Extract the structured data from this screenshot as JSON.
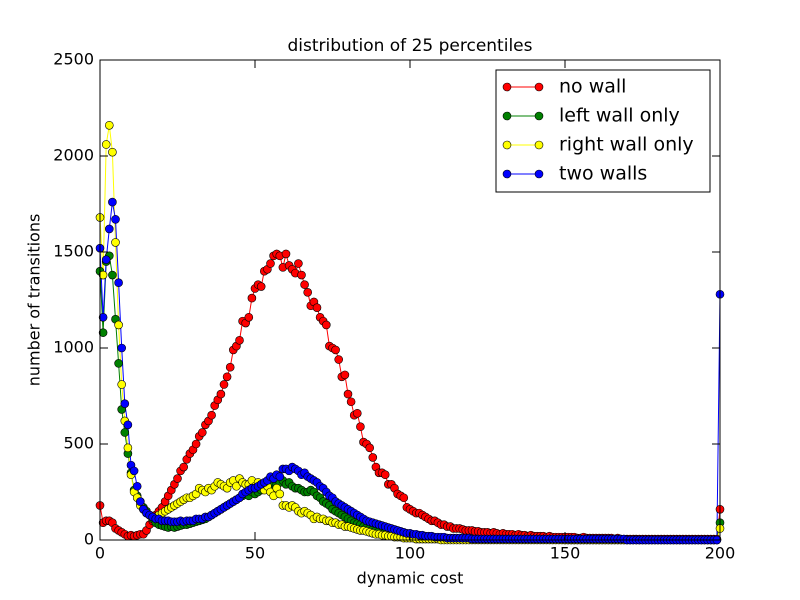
{
  "chart_data": {
    "type": "line",
    "title": "distribution of 25 percentiles",
    "x_label": "dynamic cost",
    "y_label": "number of transitions",
    "xlim": [
      0,
      200
    ],
    "xticks": [
      0,
      50,
      100,
      150,
      200
    ],
    "ylim": [
      0,
      2500
    ],
    "yticks": [
      0,
      500,
      1000,
      1500,
      2000,
      2500
    ],
    "grid": false,
    "legend_position": "upper right",
    "marker": "circle",
    "x": [
      0,
      1,
      2,
      3,
      4,
      5,
      6,
      7,
      8,
      9,
      10,
      11,
      12,
      13,
      14,
      15,
      16,
      17,
      18,
      19,
      20,
      21,
      22,
      23,
      24,
      25,
      26,
      27,
      28,
      29,
      30,
      31,
      32,
      33,
      34,
      35,
      36,
      37,
      38,
      39,
      40,
      41,
      42,
      43,
      44,
      45,
      46,
      47,
      48,
      49,
      50,
      51,
      52,
      53,
      54,
      55,
      56,
      57,
      58,
      59,
      60,
      61,
      62,
      63,
      64,
      65,
      66,
      67,
      68,
      69,
      70,
      71,
      72,
      73,
      74,
      75,
      76,
      77,
      78,
      79,
      80,
      81,
      82,
      83,
      84,
      85,
      86,
      87,
      88,
      89,
      90,
      91,
      92,
      93,
      94,
      95,
      96,
      97,
      98,
      99,
      100,
      101,
      102,
      103,
      104,
      105,
      106,
      107,
      108,
      109,
      110,
      111,
      112,
      113,
      114,
      115,
      116,
      117,
      118,
      119,
      120,
      121,
      122,
      123,
      124,
      125,
      126,
      127,
      128,
      129,
      130,
      131,
      132,
      133,
      134,
      135,
      136,
      137,
      138,
      139,
      140,
      141,
      142,
      143,
      144,
      145,
      146,
      147,
      148,
      149,
      150,
      151,
      152,
      153,
      154,
      155,
      156,
      157,
      158,
      159,
      160,
      161,
      162,
      163,
      164,
      165,
      166,
      167,
      168,
      169,
      170,
      171,
      172,
      173,
      174,
      175,
      176,
      177,
      178,
      179,
      180,
      181,
      182,
      183,
      184,
      185,
      186,
      187,
      188,
      189,
      190,
      191,
      192,
      193,
      194,
      195,
      196,
      197,
      198,
      199,
      200
    ],
    "series": [
      {
        "name": "no wall",
        "color": "#ff0000",
        "values": [
          180,
          90,
          100,
          100,
          90,
          60,
          50,
          40,
          30,
          20,
          25,
          20,
          25,
          30,
          30,
          50,
          80,
          100,
          130,
          150,
          170,
          200,
          230,
          260,
          290,
          320,
          360,
          380,
          420,
          450,
          470,
          500,
          540,
          560,
          600,
          620,
          650,
          700,
          730,
          760,
          810,
          850,
          900,
          990,
          1010,
          1040,
          1140,
          1130,
          1160,
          1260,
          1310,
          1330,
          1320,
          1400,
          1410,
          1440,
          1480,
          1490,
          1480,
          1420,
          1490,
          1430,
          1410,
          1390,
          1440,
          1380,
          1330,
          1290,
          1220,
          1240,
          1210,
          1160,
          1140,
          1120,
          1010,
          1000,
          990,
          940,
          850,
          860,
          760,
          720,
          650,
          660,
          590,
          510,
          500,
          480,
          430,
          380,
          350,
          350,
          340,
          290,
          290,
          270,
          240,
          230,
          220,
          170,
          160,
          150,
          140,
          140,
          130,
          120,
          110,
          100,
          100,
          90,
          80,
          80,
          70,
          70,
          60,
          60,
          60,
          55,
          50,
          50,
          50,
          45,
          45,
          40,
          40,
          40,
          35,
          40,
          35,
          30,
          35,
          30,
          30,
          30,
          25,
          30,
          25,
          25,
          20,
          25,
          20,
          20,
          20,
          20,
          15,
          20,
          15,
          15,
          15,
          15,
          15,
          15,
          15,
          15,
          10,
          10,
          15,
          10,
          10,
          10,
          10,
          10,
          10,
          10,
          10,
          10,
          5,
          10,
          5,
          5,
          5,
          5,
          5,
          5,
          5,
          5,
          5,
          5,
          5,
          5,
          5,
          5,
          5,
          5,
          5,
          5,
          5,
          5,
          5,
          5,
          5,
          5,
          5,
          5,
          5,
          5,
          5,
          5,
          5,
          5,
          160
        ]
      },
      {
        "name": "left wall only",
        "color": "#008000",
        "values": [
          1400,
          1080,
          1450,
          1480,
          1380,
          1150,
          920,
          680,
          560,
          450,
          350,
          260,
          230,
          200,
          170,
          150,
          130,
          110,
          90,
          80,
          75,
          70,
          65,
          70,
          65,
          70,
          75,
          80,
          80,
          85,
          90,
          95,
          100,
          105,
          110,
          120,
          130,
          140,
          150,
          160,
          170,
          180,
          190,
          200,
          210,
          220,
          230,
          240,
          230,
          250,
          240,
          250,
          260,
          270,
          270,
          280,
          300,
          290,
          300,
          310,
          290,
          300,
          280,
          270,
          270,
          260,
          250,
          250,
          260,
          250,
          230,
          220,
          200,
          190,
          180,
          160,
          150,
          140,
          130,
          120,
          110,
          100,
          90,
          85,
          80,
          70,
          65,
          60,
          55,
          50,
          45,
          40,
          40,
          35,
          30,
          30,
          25,
          25,
          20,
          20,
          20,
          15,
          15,
          15,
          10,
          10,
          10,
          10,
          10,
          10,
          5,
          5,
          5,
          5,
          5,
          5,
          5,
          5,
          5,
          5,
          5,
          5,
          5,
          5,
          5,
          5,
          5,
          5,
          5,
          5,
          5,
          5,
          5,
          5,
          5,
          5,
          5,
          5,
          5,
          5,
          5,
          5,
          5,
          5,
          5,
          5,
          5,
          5,
          5,
          5,
          0,
          0,
          0,
          0,
          0,
          0,
          0,
          0,
          0,
          0,
          0,
          0,
          0,
          0,
          0,
          0,
          0,
          0,
          0,
          0,
          0,
          0,
          0,
          0,
          0,
          0,
          0,
          0,
          0,
          0,
          0,
          0,
          0,
          0,
          0,
          0,
          0,
          0,
          0,
          0,
          0,
          0,
          0,
          0,
          0,
          0,
          0,
          0,
          0,
          0,
          90
        ]
      },
      {
        "name": "right wall only",
        "color": "#ffff00",
        "values": [
          1680,
          1380,
          2060,
          2160,
          2020,
          1550,
          1120,
          810,
          620,
          480,
          340,
          250,
          220,
          180,
          160,
          140,
          130,
          120,
          120,
          130,
          140,
          150,
          160,
          170,
          180,
          190,
          200,
          210,
          220,
          220,
          230,
          240,
          270,
          260,
          250,
          270,
          260,
          280,
          300,
          290,
          280,
          270,
          300,
          310,
          280,
          320,
          300,
          290,
          290,
          310,
          280,
          300,
          290,
          260,
          280,
          250,
          230,
          270,
          240,
          180,
          180,
          170,
          180,
          170,
          150,
          140,
          150,
          140,
          130,
          110,
          120,
          110,
          110,
          100,
          100,
          90,
          90,
          80,
          80,
          70,
          70,
          65,
          60,
          55,
          50,
          50,
          45,
          40,
          35,
          30,
          30,
          25,
          25,
          20,
          20,
          15,
          15,
          15,
          10,
          10,
          10,
          10,
          5,
          5,
          5,
          5,
          5,
          5,
          5,
          5,
          0,
          0,
          0,
          0,
          0,
          0,
          0,
          0,
          0,
          0,
          0,
          0,
          0,
          0,
          0,
          0,
          0,
          0,
          0,
          0,
          0,
          0,
          0,
          0,
          0,
          0,
          0,
          0,
          0,
          0,
          0,
          0,
          0,
          0,
          0,
          0,
          0,
          0,
          0,
          0,
          0,
          0,
          0,
          0,
          0,
          0,
          0,
          0,
          0,
          0,
          0,
          0,
          0,
          0,
          0,
          0,
          0,
          0,
          0,
          0,
          0,
          0,
          0,
          0,
          0,
          0,
          0,
          0,
          0,
          0,
          0,
          0,
          0,
          0,
          0,
          0,
          0,
          0,
          0,
          0,
          0,
          0,
          0,
          0,
          0,
          0,
          0,
          0,
          0,
          0,
          60
        ]
      },
      {
        "name": "two walls",
        "color": "#0000ff",
        "values": [
          1520,
          1160,
          1460,
          1620,
          1760,
          1670,
          1340,
          1000,
          710,
          600,
          390,
          360,
          280,
          200,
          160,
          140,
          130,
          120,
          110,
          110,
          100,
          100,
          100,
          95,
          95,
          95,
          100,
          95,
          100,
          100,
          100,
          110,
          110,
          110,
          120,
          120,
          130,
          140,
          150,
          160,
          170,
          180,
          190,
          200,
          210,
          220,
          240,
          250,
          260,
          270,
          270,
          280,
          290,
          300,
          310,
          330,
          320,
          340,
          330,
          370,
          370,
          360,
          380,
          370,
          360,
          340,
          350,
          330,
          320,
          310,
          300,
          280,
          270,
          250,
          230,
          220,
          200,
          190,
          180,
          170,
          160,
          150,
          140,
          130,
          120,
          110,
          100,
          95,
          90,
          85,
          80,
          75,
          70,
          65,
          60,
          55,
          50,
          45,
          40,
          35,
          35,
          30,
          30,
          25,
          25,
          20,
          20,
          20,
          15,
          15,
          15,
          15,
          10,
          10,
          10,
          10,
          10,
          10,
          10,
          10,
          5,
          5,
          5,
          5,
          5,
          5,
          5,
          5,
          5,
          5,
          5,
          5,
          5,
          5,
          5,
          5,
          5,
          5,
          5,
          5,
          5,
          5,
          5,
          5,
          5,
          5,
          5,
          5,
          5,
          5,
          5,
          5,
          5,
          5,
          5,
          5,
          5,
          5,
          5,
          5,
          5,
          5,
          5,
          5,
          5,
          5,
          5,
          5,
          5,
          5,
          0,
          0,
          0,
          0,
          0,
          0,
          0,
          0,
          0,
          0,
          0,
          0,
          0,
          0,
          0,
          0,
          0,
          0,
          0,
          0,
          0,
          0,
          0,
          0,
          0,
          0,
          0,
          0,
          0,
          0,
          1280
        ]
      }
    ]
  }
}
